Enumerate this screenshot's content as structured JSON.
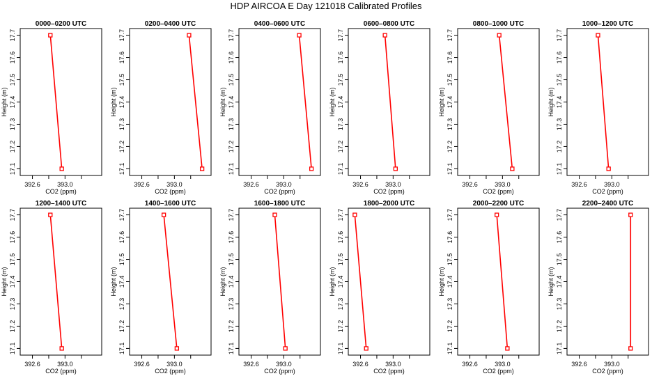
{
  "title": "HDP AIRCOA E  Day 121018  Calibrated Profiles",
  "chart_data": {
    "type": "line",
    "xlabel": "CO2 (ppm)",
    "ylabel": "Height (m)",
    "xlim": [
      392.45,
      393.45
    ],
    "ylim": [
      17.07,
      17.73
    ],
    "xticks": [
      392.6,
      392.8,
      393.0,
      393.2
    ],
    "xtick_labels": [
      "392.6",
      "",
      "393.0",
      ""
    ],
    "yticks": [
      17.1,
      17.2,
      17.3,
      17.4,
      17.5,
      17.6,
      17.7
    ],
    "ytick_labels": [
      "17.1",
      "17.2",
      "17.3",
      "17.4",
      "17.5",
      "17.6",
      "17.7"
    ],
    "grid": false,
    "line_color": "#ff0000",
    "marker_color": "#ff0000",
    "panels": [
      {
        "title": "0000–0200 UTC",
        "points": [
          [
            392.82,
            17.7
          ],
          [
            392.96,
            17.1
          ]
        ]
      },
      {
        "title": "0200–0400 UTC",
        "points": [
          [
            393.18,
            17.7
          ],
          [
            393.34,
            17.1
          ]
        ]
      },
      {
        "title": "0400–0600 UTC",
        "points": [
          [
            393.19,
            17.7
          ],
          [
            393.34,
            17.1
          ]
        ]
      },
      {
        "title": "0600–0800 UTC",
        "points": [
          [
            392.9,
            17.7
          ],
          [
            393.03,
            17.1
          ]
        ]
      },
      {
        "title": "0800–1000 UTC",
        "points": [
          [
            392.96,
            17.7
          ],
          [
            393.12,
            17.1
          ]
        ]
      },
      {
        "title": "1000–1200 UTC",
        "points": [
          [
            392.83,
            17.7
          ],
          [
            392.96,
            17.1
          ]
        ]
      },
      {
        "title": "1200–1400 UTC",
        "points": [
          [
            392.82,
            17.7
          ],
          [
            392.96,
            17.1
          ]
        ]
      },
      {
        "title": "1400–1600 UTC",
        "points": [
          [
            392.87,
            17.7
          ],
          [
            393.03,
            17.1
          ]
        ]
      },
      {
        "title": "1600–1800 UTC",
        "points": [
          [
            392.89,
            17.7
          ],
          [
            393.02,
            17.1
          ]
        ]
      },
      {
        "title": "1800–2000 UTC",
        "points": [
          [
            392.53,
            17.7
          ],
          [
            392.67,
            17.1
          ]
        ]
      },
      {
        "title": "2000–2200 UTC",
        "points": [
          [
            392.93,
            17.7
          ],
          [
            393.06,
            17.1
          ]
        ]
      },
      {
        "title": "2200–2400 UTC",
        "points": [
          [
            393.23,
            17.7
          ],
          [
            393.23,
            17.1
          ]
        ]
      }
    ]
  }
}
